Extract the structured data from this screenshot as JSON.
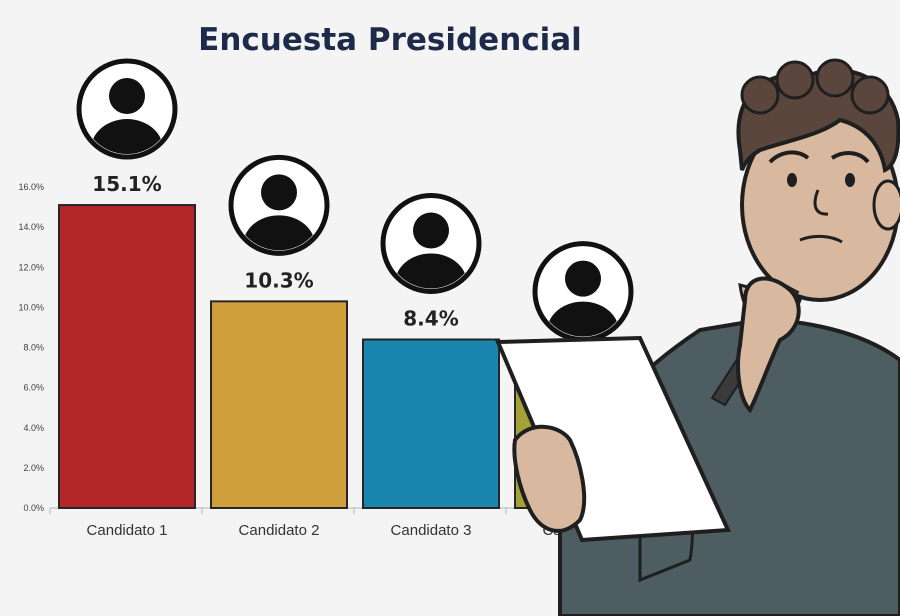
{
  "chart_data": {
    "type": "bar",
    "title": "Encuesta Presidencial",
    "categories": [
      "Candidato 1",
      "Candidato 2",
      "Candidato 3",
      "Candidato 4"
    ],
    "values": [
      15.1,
      10.3,
      8.4,
      7.0
    ],
    "data_labels": [
      "15.1%",
      "10.3%",
      "8.4%",
      ""
    ],
    "ylim": [
      0,
      16
    ],
    "yticks": [
      "0.0%",
      "2.0%",
      "4.0%",
      "6.0%",
      "8.0%",
      "10.0%",
      "12.0%",
      "14.0%",
      "16.0%"
    ],
    "bar_colors": [
      "#b3272b",
      "#cf9f3b",
      "#1b86ad",
      "#a5a038"
    ],
    "grid": false,
    "legend": "none"
  },
  "illustration": {
    "name": "thoughtful-man-with-paper"
  },
  "colors": {
    "title": "#1d2a4a",
    "background": "#f4f4f4",
    "sweater": "#4d5d62",
    "skin": "#d8b89e",
    "hair": "#5a463c"
  }
}
